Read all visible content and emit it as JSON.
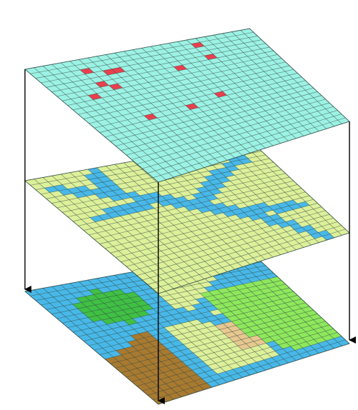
{
  "diagram": {
    "kind": "stacked raster layers",
    "grid_size": 25,
    "colors": {
      "water": "#48b8e8",
      "sand": "#ddf09a",
      "forest": "#40c044",
      "grassland": "#8ee85c",
      "soil": "#a87a30",
      "sample_area": "#9cf2e4",
      "sample_point": "#e8404e",
      "tan": "#e8c890",
      "grid_line": "#1d3530",
      "arrow": "#000000"
    },
    "layers": [
      {
        "name": "sample-points-layer",
        "base": "sample_area",
        "highlighted_cells": [
          [
            1,
            18
          ],
          [
            2,
            5
          ],
          [
            3,
            7
          ],
          [
            3,
            8
          ],
          [
            4,
            18
          ],
          [
            5,
            5
          ],
          [
            5,
            14
          ],
          [
            6,
            6
          ],
          [
            7,
            3
          ],
          [
            12,
            15
          ],
          [
            13,
            6
          ],
          [
            13,
            11
          ]
        ]
      },
      {
        "name": "hydrology-layer",
        "base": "sand",
        "features": [
          "water"
        ]
      },
      {
        "name": "land-cover-layer",
        "base": "water",
        "features": [
          "soil",
          "forest",
          "grassland",
          "sand",
          "tan"
        ]
      }
    ],
    "arrows": 3
  }
}
